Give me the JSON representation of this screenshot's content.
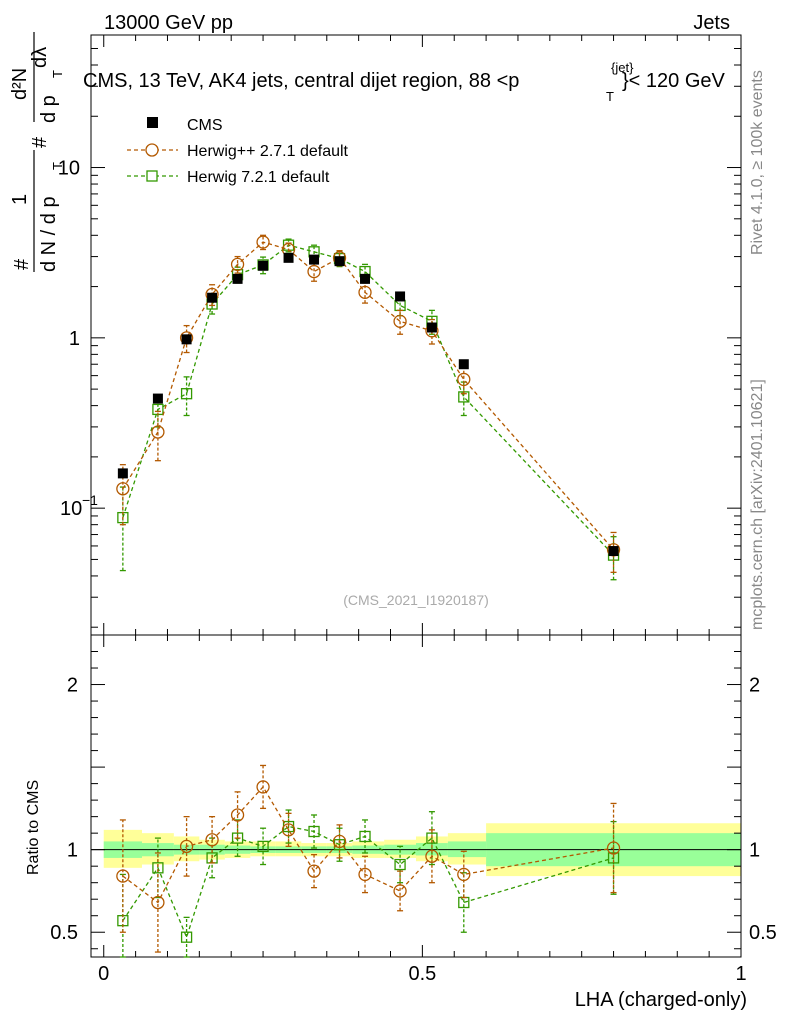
{
  "header": {
    "left": "13000 GeV pp",
    "right": "Jets",
    "title": "CMS, 13 TeV, AK4 jets, central dijet region, 88 <p",
    "title_sup": "{jet}",
    "title_sub": "T",
    "title_end": "}< 120 GeV"
  },
  "side_labels": {
    "rivet": "Rivet 4.1.0, ≥ 100k events",
    "mcplots": "mcplots.cern.ch [arXiv:2401.10621]"
  },
  "watermark": "(CMS_2021_I1920187)",
  "ylabel_main": {
    "hash1": "#",
    "one": "1",
    "dN": "d N / d p",
    "T": "T",
    "hash2": "#",
    "d2N": "d²N",
    "dpT": "d p",
    "dlambda": "dλ"
  },
  "ratio_ylabel": "Ratio to CMS",
  "xlabel": "LHA (charged-only)",
  "colors": {
    "cms": "#000000",
    "herwigpp": "#b35900",
    "herwig7": "#339900",
    "band_yellow": "#ffff99",
    "band_green": "#99ff99"
  },
  "chart_data": [
    {
      "type": "line",
      "panel": "main",
      "yscale": "log",
      "xlim": [
        -0.02,
        1.0
      ],
      "ylim": [
        0.018,
        60
      ],
      "yticks": [
        {
          "value": 0.1,
          "base": "10",
          "exp": "−1"
        },
        {
          "value": 1,
          "base": "1",
          "exp": ""
        },
        {
          "value": 10,
          "base": "10",
          "exp": ""
        }
      ],
      "x": [
        0.03,
        0.085,
        0.13,
        0.17,
        0.21,
        0.25,
        0.29,
        0.33,
        0.37,
        0.41,
        0.465,
        0.515,
        0.565,
        0.8
      ],
      "series": [
        {
          "name": "CMS",
          "marker": "filled-square",
          "color": "#000000",
          "values": [
            0.16,
            0.44,
            0.98,
            1.72,
            2.22,
            2.65,
            2.95,
            2.88,
            2.82,
            2.22,
            1.75,
            1.15,
            0.7,
            0.056
          ],
          "errors": [
            0.01,
            0.02,
            0.03,
            0.05,
            0.06,
            0.07,
            0.07,
            0.07,
            0.07,
            0.06,
            0.05,
            0.04,
            0.02,
            0.003
          ]
        },
        {
          "name": "Herwig++ 2.7.1 default",
          "marker": "open-circle",
          "color": "#b35900",
          "values": [
            0.13,
            0.28,
            1.0,
            1.8,
            2.7,
            3.65,
            3.3,
            2.45,
            2.95,
            1.85,
            1.25,
            1.1,
            0.57,
            0.057
          ],
          "errors": [
            0.05,
            0.09,
            0.18,
            0.25,
            0.3,
            0.35,
            0.3,
            0.3,
            0.3,
            0.25,
            0.2,
            0.18,
            0.1,
            0.015
          ]
        },
        {
          "name": "Herwig 7.2.1 default",
          "marker": "open-square",
          "color": "#339900",
          "values": [
            0.088,
            0.38,
            0.47,
            1.58,
            2.35,
            2.68,
            3.5,
            3.2,
            2.92,
            2.45,
            1.55,
            1.25,
            0.45,
            0.053
          ],
          "errors": [
            0.045,
            0.08,
            0.12,
            0.2,
            0.25,
            0.3,
            0.3,
            0.3,
            0.3,
            0.25,
            0.2,
            0.2,
            0.1,
            0.015
          ]
        }
      ]
    },
    {
      "type": "line",
      "panel": "ratio",
      "yscale": "linear",
      "xlim": [
        -0.02,
        1.0
      ],
      "ylim": [
        0.35,
        2.3
      ],
      "yticks": [
        {
          "value": 0.5,
          "label": "0.5"
        },
        {
          "value": 1,
          "label": "1"
        },
        {
          "value": 2,
          "label": "2"
        }
      ],
      "xticks": [
        {
          "value": 0,
          "label": "0"
        },
        {
          "value": 0.5,
          "label": "0.5"
        },
        {
          "value": 1,
          "label": "1"
        }
      ],
      "bands": [
        {
          "x0": 0.0,
          "x1": 0.06,
          "yellow": [
            0.89,
            1.12
          ],
          "green": [
            0.95,
            1.05
          ]
        },
        {
          "x0": 0.06,
          "x1": 0.11,
          "yellow": [
            0.91,
            1.1
          ],
          "green": [
            0.96,
            1.04
          ]
        },
        {
          "x0": 0.11,
          "x1": 0.15,
          "yellow": [
            0.93,
            1.08
          ],
          "green": [
            0.97,
            1.03
          ]
        },
        {
          "x0": 0.15,
          "x1": 0.19,
          "yellow": [
            0.94,
            1.06
          ],
          "green": [
            0.97,
            1.03
          ]
        },
        {
          "x0": 0.19,
          "x1": 0.23,
          "yellow": [
            0.95,
            1.05
          ],
          "green": [
            0.975,
            1.025
          ]
        },
        {
          "x0": 0.23,
          "x1": 0.27,
          "yellow": [
            0.96,
            1.05
          ],
          "green": [
            0.98,
            1.02
          ]
        },
        {
          "x0": 0.27,
          "x1": 0.31,
          "yellow": [
            0.96,
            1.05
          ],
          "green": [
            0.98,
            1.02
          ]
        },
        {
          "x0": 0.31,
          "x1": 0.35,
          "yellow": [
            0.96,
            1.04
          ],
          "green": [
            0.98,
            1.02
          ]
        },
        {
          "x0": 0.35,
          "x1": 0.39,
          "yellow": [
            0.96,
            1.04
          ],
          "green": [
            0.98,
            1.02
          ]
        },
        {
          "x0": 0.39,
          "x1": 0.44,
          "yellow": [
            0.95,
            1.05
          ],
          "green": [
            0.975,
            1.025
          ]
        },
        {
          "x0": 0.44,
          "x1": 0.49,
          "yellow": [
            0.95,
            1.06
          ],
          "green": [
            0.97,
            1.03
          ]
        },
        {
          "x0": 0.49,
          "x1": 0.54,
          "yellow": [
            0.93,
            1.08
          ],
          "green": [
            0.965,
            1.04
          ]
        },
        {
          "x0": 0.54,
          "x1": 0.6,
          "yellow": [
            0.91,
            1.1
          ],
          "green": [
            0.955,
            1.05
          ]
        },
        {
          "x0": 0.6,
          "x1": 1.0,
          "yellow": [
            0.84,
            1.16
          ],
          "green": [
            0.9,
            1.1
          ]
        }
      ],
      "x": [
        0.03,
        0.085,
        0.13,
        0.17,
        0.21,
        0.25,
        0.29,
        0.33,
        0.37,
        0.41,
        0.465,
        0.515,
        0.565,
        0.8
      ],
      "series": [
        {
          "name": "Herwig++ 2.7.1 default",
          "marker": "open-circle",
          "color": "#b35900",
          "values": [
            0.84,
            0.68,
            1.02,
            1.06,
            1.21,
            1.38,
            1.12,
            0.87,
            1.05,
            0.85,
            0.75,
            0.96,
            0.85,
            1.01
          ],
          "errors": [
            0.34,
            0.3,
            0.18,
            0.14,
            0.14,
            0.13,
            0.1,
            0.1,
            0.1,
            0.11,
            0.12,
            0.16,
            0.14,
            0.27
          ]
        },
        {
          "name": "Herwig 7.2.1 default",
          "marker": "open-square",
          "color": "#339900",
          "values": [
            0.57,
            0.89,
            0.47,
            0.95,
            1.07,
            1.02,
            1.14,
            1.11,
            1.03,
            1.08,
            0.91,
            1.07,
            0.68,
            0.95
          ],
          "errors": [
            0.28,
            0.18,
            0.12,
            0.12,
            0.11,
            0.11,
            0.1,
            0.1,
            0.1,
            0.1,
            0.11,
            0.16,
            0.18,
            0.22
          ]
        }
      ]
    }
  ]
}
